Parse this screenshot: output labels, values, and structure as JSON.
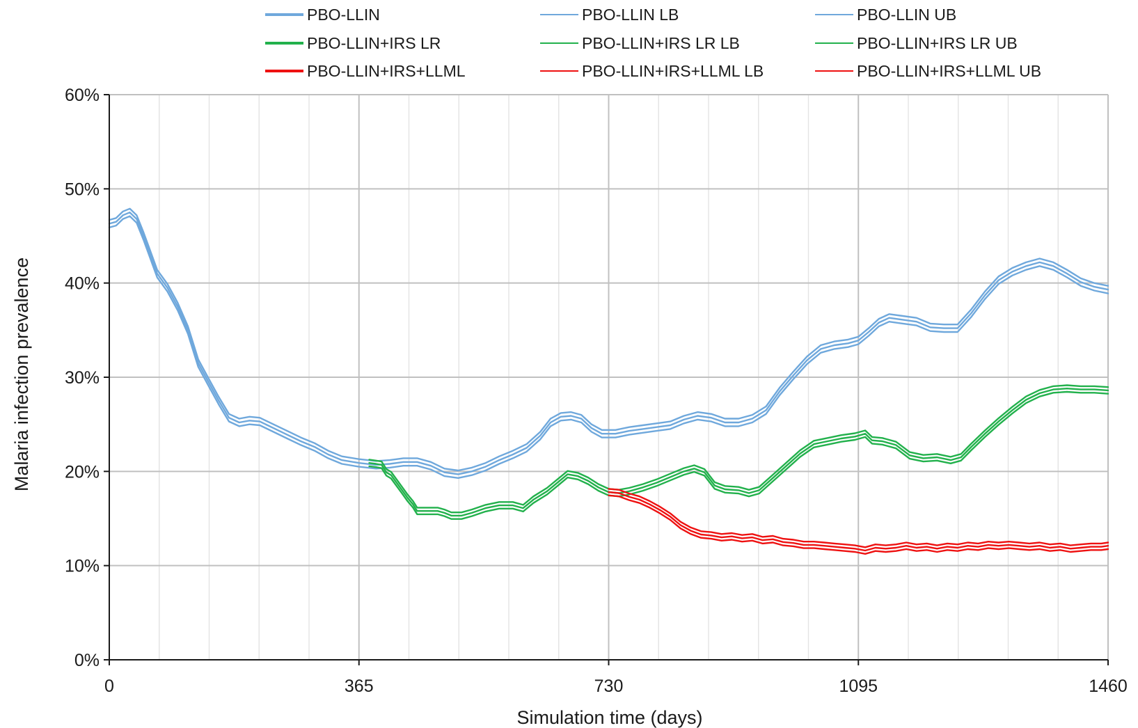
{
  "chart_data": {
    "type": "line",
    "title": "",
    "xlabel": "Simulation time (days)",
    "ylabel": "Malaria infection prevalence",
    "xlim": [
      0,
      1460
    ],
    "ylim": [
      0,
      0.6
    ],
    "x_ticks": [
      0,
      365,
      730,
      1095,
      1460
    ],
    "x_tick_labels": [
      "0",
      "365",
      "730",
      "1095",
      "1460"
    ],
    "y_ticks": [
      0,
      0.1,
      0.2,
      0.3,
      0.4,
      0.5,
      0.6
    ],
    "y_tick_labels": [
      "0%",
      "10%",
      "20%",
      "30%",
      "40%",
      "50%",
      "60%"
    ],
    "grid": true,
    "legend_position": "top",
    "colors": {
      "pbo_llin": "#6fa8dc",
      "irs_lr": "#22b14c",
      "llml": "#ee1111",
      "major_grid": "#c0c0c0",
      "minor_grid": "#e3e3e3",
      "axis": "#1a1a1a"
    },
    "series": [
      {
        "name": "PBO-LLIN",
        "color": "#6fa8dc",
        "legend_stroke": 4,
        "points": [
          [
            0,
            0.463
          ],
          [
            10,
            0.465
          ],
          [
            20,
            0.472
          ],
          [
            30,
            0.475
          ],
          [
            40,
            0.468
          ],
          [
            50,
            0.45
          ],
          [
            60,
            0.43
          ],
          [
            70,
            0.41
          ],
          [
            85,
            0.395
          ],
          [
            100,
            0.375
          ],
          [
            115,
            0.35
          ],
          [
            130,
            0.315
          ],
          [
            145,
            0.295
          ],
          [
            160,
            0.275
          ],
          [
            175,
            0.257
          ],
          [
            190,
            0.252
          ],
          [
            205,
            0.254
          ],
          [
            220,
            0.253
          ],
          [
            240,
            0.246
          ],
          [
            260,
            0.239
          ],
          [
            280,
            0.232
          ],
          [
            300,
            0.226
          ],
          [
            320,
            0.218
          ],
          [
            340,
            0.212
          ],
          [
            365,
            0.209
          ],
          [
            390,
            0.207
          ],
          [
            410,
            0.208
          ],
          [
            430,
            0.21
          ],
          [
            450,
            0.21
          ],
          [
            470,
            0.206
          ],
          [
            490,
            0.199
          ],
          [
            510,
            0.197
          ],
          [
            530,
            0.2
          ],
          [
            550,
            0.205
          ],
          [
            570,
            0.212
          ],
          [
            590,
            0.218
          ],
          [
            610,
            0.225
          ],
          [
            630,
            0.238
          ],
          [
            645,
            0.252
          ],
          [
            660,
            0.258
          ],
          [
            675,
            0.259
          ],
          [
            690,
            0.256
          ],
          [
            705,
            0.246
          ],
          [
            720,
            0.24
          ],
          [
            740,
            0.24
          ],
          [
            760,
            0.243
          ],
          [
            780,
            0.245
          ],
          [
            800,
            0.247
          ],
          [
            820,
            0.249
          ],
          [
            840,
            0.255
          ],
          [
            860,
            0.259
          ],
          [
            880,
            0.257
          ],
          [
            900,
            0.252
          ],
          [
            920,
            0.252
          ],
          [
            940,
            0.256
          ],
          [
            960,
            0.265
          ],
          [
            980,
            0.285
          ],
          [
            1000,
            0.302
          ],
          [
            1020,
            0.318
          ],
          [
            1040,
            0.33
          ],
          [
            1060,
            0.334
          ],
          [
            1080,
            0.336
          ],
          [
            1095,
            0.339
          ],
          [
            1110,
            0.348
          ],
          [
            1125,
            0.358
          ],
          [
            1140,
            0.363
          ],
          [
            1160,
            0.361
          ],
          [
            1180,
            0.359
          ],
          [
            1200,
            0.353
          ],
          [
            1220,
            0.352
          ],
          [
            1240,
            0.352
          ],
          [
            1260,
            0.368
          ],
          [
            1280,
            0.387
          ],
          [
            1300,
            0.403
          ],
          [
            1320,
            0.412
          ],
          [
            1340,
            0.418
          ],
          [
            1360,
            0.422
          ],
          [
            1380,
            0.418
          ],
          [
            1400,
            0.41
          ],
          [
            1420,
            0.401
          ],
          [
            1440,
            0.396
          ],
          [
            1460,
            0.393
          ]
        ]
      },
      {
        "name": "PBO-LLIN LB",
        "color": "#6fa8dc",
        "legend_stroke": 2,
        "from": "PBO-LLIN",
        "offset": -0.004
      },
      {
        "name": "PBO-LLIN UB",
        "color": "#6fa8dc",
        "legend_stroke": 2,
        "from": "PBO-LLIN",
        "offset": 0.004
      },
      {
        "name": "PBO-LLIN+IRS LR",
        "color": "#22b14c",
        "legend_stroke": 4,
        "points": [
          [
            380,
            0.209
          ],
          [
            390,
            0.208
          ],
          [
            398,
            0.207
          ],
          [
            405,
            0.199
          ],
          [
            412,
            0.196
          ],
          [
            420,
            0.188
          ],
          [
            428,
            0.18
          ],
          [
            436,
            0.172
          ],
          [
            444,
            0.165
          ],
          [
            450,
            0.158
          ],
          [
            465,
            0.158
          ],
          [
            480,
            0.158
          ],
          [
            490,
            0.156
          ],
          [
            500,
            0.153
          ],
          [
            515,
            0.153
          ],
          [
            530,
            0.156
          ],
          [
            550,
            0.161
          ],
          [
            570,
            0.164
          ],
          [
            590,
            0.164
          ],
          [
            605,
            0.161
          ],
          [
            620,
            0.17
          ],
          [
            640,
            0.179
          ],
          [
            655,
            0.188
          ],
          [
            670,
            0.197
          ],
          [
            685,
            0.195
          ],
          [
            700,
            0.19
          ],
          [
            715,
            0.183
          ],
          [
            730,
            0.178
          ],
          [
            745,
            0.177
          ],
          [
            760,
            0.179
          ],
          [
            780,
            0.183
          ],
          [
            800,
            0.188
          ],
          [
            820,
            0.194
          ],
          [
            840,
            0.2
          ],
          [
            855,
            0.203
          ],
          [
            870,
            0.199
          ],
          [
            885,
            0.185
          ],
          [
            900,
            0.181
          ],
          [
            920,
            0.18
          ],
          [
            935,
            0.177
          ],
          [
            950,
            0.18
          ],
          [
            970,
            0.193
          ],
          [
            990,
            0.206
          ],
          [
            1010,
            0.219
          ],
          [
            1030,
            0.229
          ],
          [
            1050,
            0.232
          ],
          [
            1070,
            0.235
          ],
          [
            1090,
            0.237
          ],
          [
            1105,
            0.24
          ],
          [
            1115,
            0.233
          ],
          [
            1130,
            0.232
          ],
          [
            1150,
            0.228
          ],
          [
            1170,
            0.217
          ],
          [
            1190,
            0.214
          ],
          [
            1210,
            0.215
          ],
          [
            1230,
            0.212
          ],
          [
            1245,
            0.215
          ],
          [
            1260,
            0.226
          ],
          [
            1280,
            0.24
          ],
          [
            1300,
            0.253
          ],
          [
            1320,
            0.265
          ],
          [
            1340,
            0.276
          ],
          [
            1360,
            0.283
          ],
          [
            1380,
            0.287
          ],
          [
            1400,
            0.288
          ],
          [
            1420,
            0.287
          ],
          [
            1440,
            0.287
          ],
          [
            1460,
            0.286
          ]
        ]
      },
      {
        "name": "PBO-LLIN+IRS LR LB",
        "color": "#22b14c",
        "legend_stroke": 2,
        "from": "PBO-LLIN+IRS LR",
        "offset": -0.0035
      },
      {
        "name": "PBO-LLIN+IRS LR UB",
        "color": "#22b14c",
        "legend_stroke": 2,
        "from": "PBO-LLIN+IRS LR",
        "offset": 0.0035
      },
      {
        "name": "PBO-LLIN+IRS+LLML",
        "color": "#ee1111",
        "legend_stroke": 4,
        "points": [
          [
            730,
            0.178
          ],
          [
            745,
            0.177
          ],
          [
            760,
            0.173
          ],
          [
            775,
            0.17
          ],
          [
            790,
            0.165
          ],
          [
            805,
            0.159
          ],
          [
            820,
            0.152
          ],
          [
            835,
            0.143
          ],
          [
            850,
            0.137
          ],
          [
            865,
            0.133
          ],
          [
            880,
            0.132
          ],
          [
            895,
            0.13
          ],
          [
            910,
            0.131
          ],
          [
            925,
            0.129
          ],
          [
            940,
            0.13
          ],
          [
            955,
            0.127
          ],
          [
            970,
            0.128
          ],
          [
            985,
            0.125
          ],
          [
            1000,
            0.124
          ],
          [
            1015,
            0.122
          ],
          [
            1030,
            0.122
          ],
          [
            1045,
            0.121
          ],
          [
            1060,
            0.12
          ],
          [
            1075,
            0.119
          ],
          [
            1090,
            0.118
          ],
          [
            1105,
            0.116
          ],
          [
            1120,
            0.119
          ],
          [
            1135,
            0.118
          ],
          [
            1150,
            0.119
          ],
          [
            1165,
            0.121
          ],
          [
            1180,
            0.119
          ],
          [
            1195,
            0.12
          ],
          [
            1210,
            0.118
          ],
          [
            1225,
            0.12
          ],
          [
            1240,
            0.119
          ],
          [
            1255,
            0.121
          ],
          [
            1270,
            0.12
          ],
          [
            1285,
            0.122
          ],
          [
            1300,
            0.121
          ],
          [
            1315,
            0.122
          ],
          [
            1330,
            0.121
          ],
          [
            1345,
            0.12
          ],
          [
            1360,
            0.121
          ],
          [
            1375,
            0.119
          ],
          [
            1390,
            0.12
          ],
          [
            1405,
            0.118
          ],
          [
            1420,
            0.119
          ],
          [
            1435,
            0.12
          ],
          [
            1450,
            0.12
          ],
          [
            1460,
            0.121
          ]
        ]
      },
      {
        "name": "PBO-LLIN+IRS+LLML LB",
        "color": "#ee1111",
        "legend_stroke": 2,
        "from": "PBO-LLIN+IRS+LLML",
        "offset": -0.0035
      },
      {
        "name": "PBO-LLIN+IRS+LLML UB",
        "color": "#ee1111",
        "legend_stroke": 2,
        "from": "PBO-LLIN+IRS+LLML",
        "offset": 0.0035
      }
    ]
  }
}
